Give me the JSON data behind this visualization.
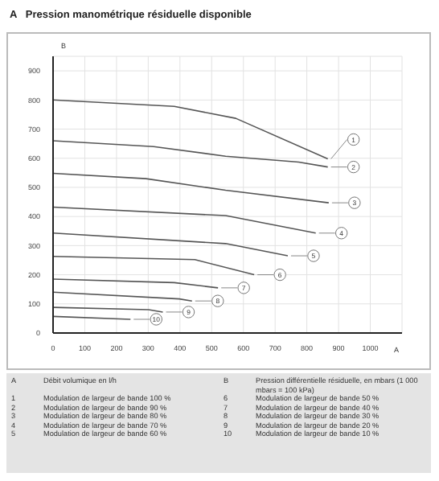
{
  "chart_data": {
    "type": "line",
    "title": "A   Pression manométrique résiduelle disponible",
    "xlabel": "A",
    "ylabel": "B",
    "xlim": [
      0,
      1100
    ],
    "xticks": [
      0,
      100,
      200,
      300,
      400,
      500,
      600,
      700,
      800,
      900,
      1000
    ],
    "ylim": [
      0,
      950
    ],
    "yticks": [
      0,
      100,
      200,
      300,
      400,
      500,
      600,
      700,
      800,
      900
    ],
    "grid": true,
    "marker": "none",
    "line_style": "solid",
    "series": [
      {
        "name": "1",
        "color": "#555555",
        "x": [
          0,
          382,
          576,
          866
        ],
        "values": [
          800,
          778,
          737,
          598
        ]
      },
      {
        "name": "2",
        "color": "#555555",
        "x": [
          0,
          317,
          544,
          774,
          866
        ],
        "values": [
          660,
          640,
          607,
          587,
          570
        ]
      },
      {
        "name": "3",
        "color": "#555555",
        "x": [
          0,
          293,
          544,
          869
        ],
        "values": [
          548,
          530,
          490,
          447
        ]
      },
      {
        "name": "4",
        "color": "#555555",
        "x": [
          0,
          544,
          828
        ],
        "values": [
          432,
          403,
          343
        ]
      },
      {
        "name": "5",
        "color": "#555555",
        "x": [
          0,
          544,
          740
        ],
        "values": [
          343,
          307,
          265
        ]
      },
      {
        "name": "6",
        "color": "#555555",
        "x": [
          0,
          447,
          634
        ],
        "values": [
          263,
          252,
          200
        ]
      },
      {
        "name": "7",
        "color": "#555555",
        "x": [
          0,
          382,
          520
        ],
        "values": [
          185,
          173,
          155
        ]
      },
      {
        "name": "8",
        "color": "#555555",
        "x": [
          0,
          398,
          438
        ],
        "values": [
          140,
          117,
          110
        ]
      },
      {
        "name": "9",
        "color": "#555555",
        "x": [
          0,
          301,
          346
        ],
        "values": [
          88,
          80,
          72
        ]
      },
      {
        "name": "10",
        "color": "#555555",
        "x": [
          0,
          244
        ],
        "values": [
          57,
          47
        ]
      }
    ],
    "annotations": [
      "A",
      "Débit volumique en l/h",
      "B",
      "Pression différentielle résiduelle, en mbars (1 000 mbars = 100 kPa)",
      "1",
      "Modulation de largeur de bande 100 %",
      "6",
      "Modulation de largeur de bande 50 %",
      "2",
      "Modulation de largeur de bande 90 %",
      "7",
      "Modulation de largeur de bande 40 %",
      "3",
      "Modulation de largeur de bande 80 %",
      "8",
      "Modulation de largeur de bande 30 %",
      "4",
      "Modulation de largeur de bande 70 %",
      "9",
      "Modulation de largeur de bande 20 %",
      "5",
      "Modulation de largeur de bande 60 %",
      "10",
      "Modulation de largeur de bande 10 %"
    ]
  }
}
